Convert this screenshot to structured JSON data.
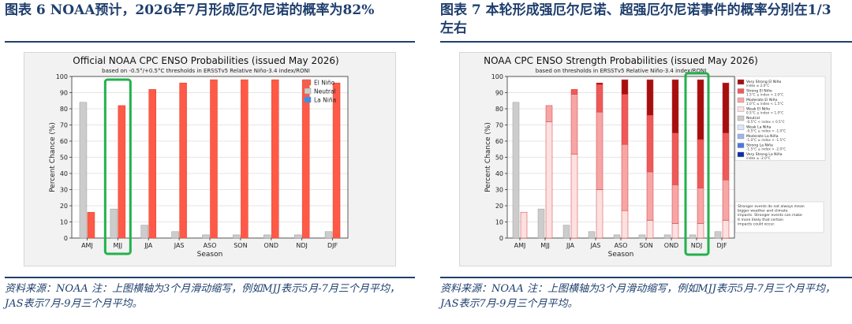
{
  "figures": [
    {
      "caption": "图表 6 NOAA预计，2026年7月形成厄尔尼诺的概率为82%",
      "source": "资料来源：NOAA 注：上图横轴为3个月滑动缩写，例如MJJ表示5月-7月三个月平均，JAS表示7月-9月三个月平均。"
    },
    {
      "caption": "图表 7 本轮形成强厄尔尼诺、超强厄尔尼诺事件的概率分别在1/3左右",
      "source": "资料来源：NOAA 注：上图横轴为3个月滑动缩写，例如MJJ表示5月-7月三个月平均，JAS表示7月-9月三个月平均。"
    }
  ],
  "chart_data": [
    {
      "type": "bar",
      "title": "Official NOAA CPC ENSO Probabilities (issued May 2026)",
      "subtitle": "based on -0.5°/+0.5°C thresholds in ERSSTv5 Relative Niño-3.4 index/RONI",
      "xlabel": "Season",
      "ylabel": "Percent Chance (%)",
      "ylim": [
        0,
        100
      ],
      "yticks": [
        0,
        10,
        20,
        30,
        40,
        50,
        60,
        70,
        80,
        90,
        100
      ],
      "grid": true,
      "legend_position": "upper-right",
      "categories": [
        "AMJ",
        "MJJ",
        "JJA",
        "JAS",
        "ASO",
        "SON",
        "OND",
        "NDJ",
        "DJF"
      ],
      "series": [
        {
          "name": "El Niño",
          "color": "#fe5a47",
          "values": [
            16,
            82,
            92,
            96,
            98,
            98,
            98,
            98,
            96
          ]
        },
        {
          "name": "Neutral",
          "color": "#cccccc",
          "values": [
            84,
            18,
            8,
            4,
            2,
            2,
            2,
            2,
            4
          ]
        },
        {
          "name": "La Niña",
          "color": "#3d8ef0",
          "values": [
            0,
            0,
            0,
            0,
            0,
            0,
            0,
            0,
            0
          ]
        }
      ],
      "highlight_category": "MJJ",
      "highlight_color": "#22b14c"
    },
    {
      "type": "bar",
      "title": "NOAA CPC ENSO Strength Probabilities (issued May 2026)",
      "subtitle": "based on thresholds in ERSSTv5 Relative Niño-3.4 index/RONI",
      "xlabel": "Season",
      "ylabel": "Percent Chance (%)",
      "ylim": [
        0,
        100
      ],
      "yticks": [
        0,
        10,
        20,
        30,
        40,
        50,
        60,
        70,
        80,
        90,
        100
      ],
      "grid": true,
      "legend_position": "right",
      "categories": [
        "AMJ",
        "MJJ",
        "JJA",
        "JAS",
        "ASO",
        "SON",
        "OND",
        "NDJ",
        "DJF"
      ],
      "neutral": {
        "name": "Neutral",
        "range": "-0.5°C < index < 0.5°C",
        "color": "#cccccc",
        "values": [
          84,
          18,
          8,
          4,
          2,
          2,
          2,
          2,
          4
        ]
      },
      "elnino_stack": [
        {
          "name": "Weak El Niño",
          "range": "0.5°C ≤ index < 1.0°C",
          "color": "#fde0e0",
          "values": [
            16,
            72,
            52,
            30,
            17,
            11,
            9,
            9,
            11
          ]
        },
        {
          "name": "Moderate El Niño",
          "range": "1.0°C ≤ index < 1.5°C",
          "color": "#f7a5a5",
          "values": [
            0,
            10,
            37,
            48,
            41,
            30,
            24,
            22,
            25
          ]
        },
        {
          "name": "Strong El Niño",
          "range": "1.5°C ≤ index < 2.0°C",
          "color": "#ee5a5a",
          "values": [
            0,
            0,
            3,
            17,
            31,
            35,
            32,
            30,
            29
          ]
        },
        {
          "name": "Very Strong El Niño",
          "range": "index ≥ 2.0°C",
          "color": "#a50f0f",
          "values": [
            0,
            0,
            0,
            1,
            9,
            22,
            33,
            37,
            31
          ]
        }
      ],
      "legend": [
        {
          "name": "Very Strong El Niño",
          "range": "index ≥ 2.0°C",
          "color": "#a50f0f"
        },
        {
          "name": "Strong El Niño",
          "range": "1.5°C ≤ index < 2.0°C",
          "color": "#ee5a5a"
        },
        {
          "name": "Moderate El Niño",
          "range": "1.0°C ≤ index < 1.5°C",
          "color": "#f7a5a5"
        },
        {
          "name": "Weak El Niño",
          "range": "0.5°C ≤ index < 1.0°C",
          "color": "#fde0e0"
        },
        {
          "name": "Neutral",
          "range": "-0.5°C < index < 0.5°C",
          "color": "#cccccc"
        },
        {
          "name": "Weak La Niña",
          "range": "-0.5°C ≥ index > -1.0°C",
          "color": "#dce6fb"
        },
        {
          "name": "Moderate La Niña",
          "range": "-1.0°C ≥ index > -1.5°C",
          "color": "#9bb5ee"
        },
        {
          "name": "Strong La Niña",
          "range": "-1.5°C ≥ index > -2.0°C",
          "color": "#4a78dd"
        },
        {
          "name": "Very Strong La Niña",
          "range": "index ≤ -2.0°C",
          "color": "#0b2fa8"
        }
      ],
      "note": "Stronger events do not always mean bigger weather and climate impacts. Stronger events can make it more likely that certain impacts could occur.",
      "highlight_category": "NDJ",
      "highlight_color": "#22b14c"
    }
  ]
}
